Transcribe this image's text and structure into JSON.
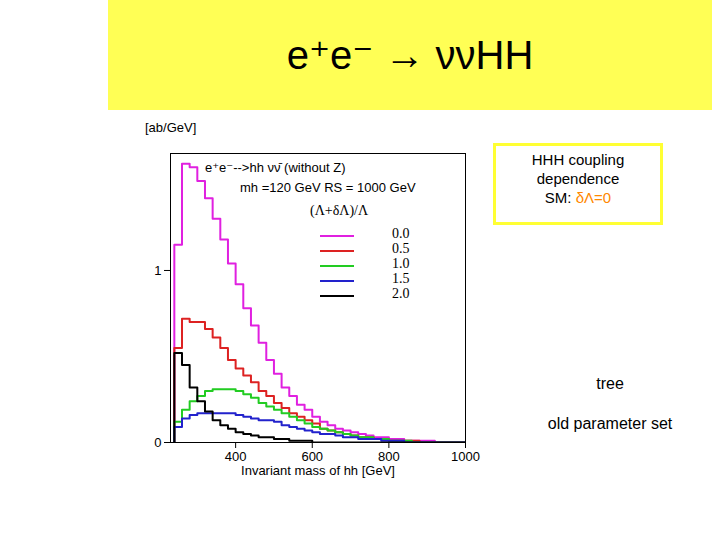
{
  "chart_data": {
    "type": "histogram",
    "title": "e⁺e⁻ → ννHH",
    "x_label": "Invariant mass of hh [GeV]",
    "y_label": "[ab/GeV]",
    "legend_title": "(Λ+δΛ)/Λ",
    "legend": "top-right",
    "annotations": [
      "e⁺e⁻-->hh  νν̄   (without Z)",
      "mh =120 GeV  RS = 1000 GeV",
      "HHH coupling dependence",
      "SM: δΛ=0",
      "tree",
      "old parameter set"
    ],
    "bins": [
      240,
      260,
      280,
      300,
      320,
      340,
      360,
      380,
      400,
      420,
      440,
      460,
      480,
      500,
      520,
      540,
      560,
      580,
      600,
      620,
      640,
      660,
      680,
      700,
      720,
      740,
      760,
      780,
      800,
      820,
      840,
      860,
      880,
      900,
      920,
      940,
      960,
      980,
      1000
    ],
    "series": [
      {
        "name": "0.0",
        "color": "#e020e0",
        "values": [
          1.15,
          1.62,
          1.6,
          1.52,
          1.42,
          1.3,
          1.18,
          1.04,
          0.92,
          0.78,
          0.68,
          0.58,
          0.48,
          0.4,
          0.32,
          0.27,
          0.22,
          0.19,
          0.15,
          0.12,
          0.1,
          0.08,
          0.07,
          0.06,
          0.05,
          0.04,
          0.03,
          0.03,
          0.02,
          0.02,
          0.01,
          0.01,
          0.01,
          0.01,
          0,
          0,
          0,
          0
        ]
      },
      {
        "name": "0.5",
        "color": "#dd2222",
        "values": [
          0.55,
          0.72,
          0.7,
          0.7,
          0.66,
          0.61,
          0.55,
          0.48,
          0.43,
          0.39,
          0.35,
          0.3,
          0.27,
          0.23,
          0.2,
          0.17,
          0.15,
          0.13,
          0.11,
          0.08,
          0.07,
          0.06,
          0.05,
          0.04,
          0.03,
          0.03,
          0.02,
          0.02,
          0.01,
          0.01,
          0.01,
          0.01,
          0,
          0,
          0,
          0,
          0,
          0
        ]
      },
      {
        "name": "1.0",
        "color": "#22cc22",
        "values": [
          0.12,
          0.19,
          0.24,
          0.27,
          0.3,
          0.31,
          0.31,
          0.31,
          0.3,
          0.28,
          0.26,
          0.23,
          0.21,
          0.19,
          0.17,
          0.15,
          0.13,
          0.11,
          0.09,
          0.08,
          0.07,
          0.06,
          0.05,
          0.04,
          0.03,
          0.03,
          0.02,
          0.02,
          0.01,
          0.01,
          0.01,
          0,
          0,
          0,
          0,
          0,
          0,
          0
        ]
      },
      {
        "name": "1.5",
        "color": "#2222cc",
        "values": [
          0.09,
          0.14,
          0.16,
          0.17,
          0.17,
          0.17,
          0.17,
          0.17,
          0.16,
          0.15,
          0.14,
          0.13,
          0.13,
          0.12,
          0.1,
          0.09,
          0.08,
          0.07,
          0.06,
          0.05,
          0.05,
          0.04,
          0.03,
          0.03,
          0.02,
          0.02,
          0.02,
          0.01,
          0.01,
          0.01,
          0,
          0,
          0,
          0,
          0,
          0,
          0,
          0
        ]
      },
      {
        "name": "2.0",
        "color": "#000000",
        "values": [
          0.52,
          0.45,
          0.32,
          0.24,
          0.18,
          0.13,
          0.1,
          0.08,
          0.06,
          0.05,
          0.04,
          0.03,
          0.03,
          0.02,
          0.02,
          0.01,
          0.01,
          0.01,
          0,
          0,
          0,
          0,
          0,
          0,
          0,
          0,
          0,
          0,
          0,
          0,
          0,
          0,
          0,
          0,
          0,
          0,
          0,
          0
        ]
      }
    ],
    "xlim": [
      230,
      1000
    ],
    "xticks": [
      400,
      600,
      800,
      1000
    ],
    "ylim": [
      0,
      1.68
    ],
    "yticks": [
      0,
      1
    ]
  }
}
